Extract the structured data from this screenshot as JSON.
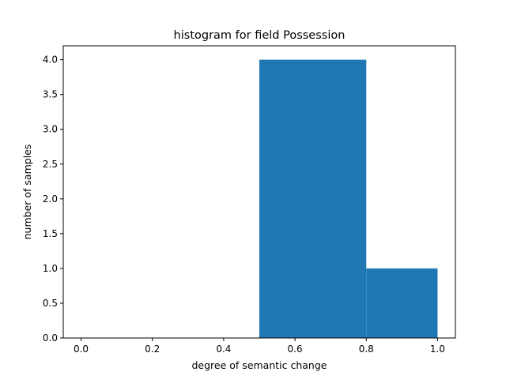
{
  "chart_data": {
    "type": "bar",
    "title": "histogram for field Possession",
    "xlabel": "degree of semantic change",
    "ylabel": "number of samples",
    "xlim": [
      -0.05,
      1.05
    ],
    "ylim": [
      0,
      4.2
    ],
    "xticks": [
      "0.0",
      "0.2",
      "0.4",
      "0.6",
      "0.8",
      "1.0"
    ],
    "yticks": [
      "0.0",
      "0.5",
      "1.0",
      "1.5",
      "2.0",
      "2.5",
      "3.0",
      "3.5",
      "4.0"
    ],
    "bins": [
      {
        "x0": 0.0,
        "x1": 0.5,
        "value": 0
      },
      {
        "x0": 0.5,
        "x1": 0.8,
        "value": 4
      },
      {
        "x0": 0.8,
        "x1": 1.0,
        "value": 1
      }
    ],
    "bar_color": "#1f77b4",
    "grid": false,
    "legend": "none"
  }
}
